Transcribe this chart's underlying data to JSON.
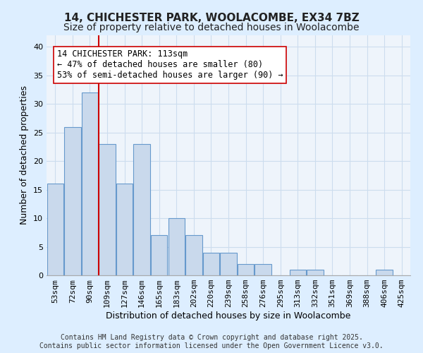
{
  "title_line1": "14, CHICHESTER PARK, WOOLACOMBE, EX34 7BZ",
  "title_line2": "Size of property relative to detached houses in Woolacombe",
  "xlabel": "Distribution of detached houses by size in Woolacombe",
  "ylabel": "Number of detached properties",
  "categories": [
    "53sqm",
    "72sqm",
    "90sqm",
    "109sqm",
    "127sqm",
    "146sqm",
    "165sqm",
    "183sqm",
    "202sqm",
    "220sqm",
    "239sqm",
    "258sqm",
    "276sqm",
    "295sqm",
    "313sqm",
    "332sqm",
    "351sqm",
    "369sqm",
    "388sqm",
    "406sqm",
    "425sqm"
  ],
  "values": [
    16,
    26,
    32,
    23,
    16,
    23,
    7,
    10,
    7,
    4,
    4,
    2,
    2,
    0,
    1,
    1,
    0,
    0,
    0,
    1,
    0
  ],
  "bar_color": "#c9d9ec",
  "bar_edge_color": "#6699cc",
  "vline_x": 2.5,
  "vline_color": "#cc0000",
  "annotation_text": "14 CHICHESTER PARK: 113sqm\n← 47% of detached houses are smaller (80)\n53% of semi-detached houses are larger (90) →",
  "annotation_box_color": "#ffffff",
  "annotation_box_edge": "#cc0000",
  "ylim": [
    0,
    42
  ],
  "yticks": [
    0,
    5,
    10,
    15,
    20,
    25,
    30,
    35,
    40
  ],
  "grid_color": "#ccddee",
  "background_color": "#ddeeff",
  "plot_bg_color": "#eef4fb",
  "footer_text": "Contains HM Land Registry data © Crown copyright and database right 2025.\nContains public sector information licensed under the Open Government Licence v3.0.",
  "title_fontsize": 11,
  "subtitle_fontsize": 10,
  "axis_label_fontsize": 9,
  "tick_fontsize": 8,
  "annotation_fontsize": 8.5,
  "footer_fontsize": 7
}
